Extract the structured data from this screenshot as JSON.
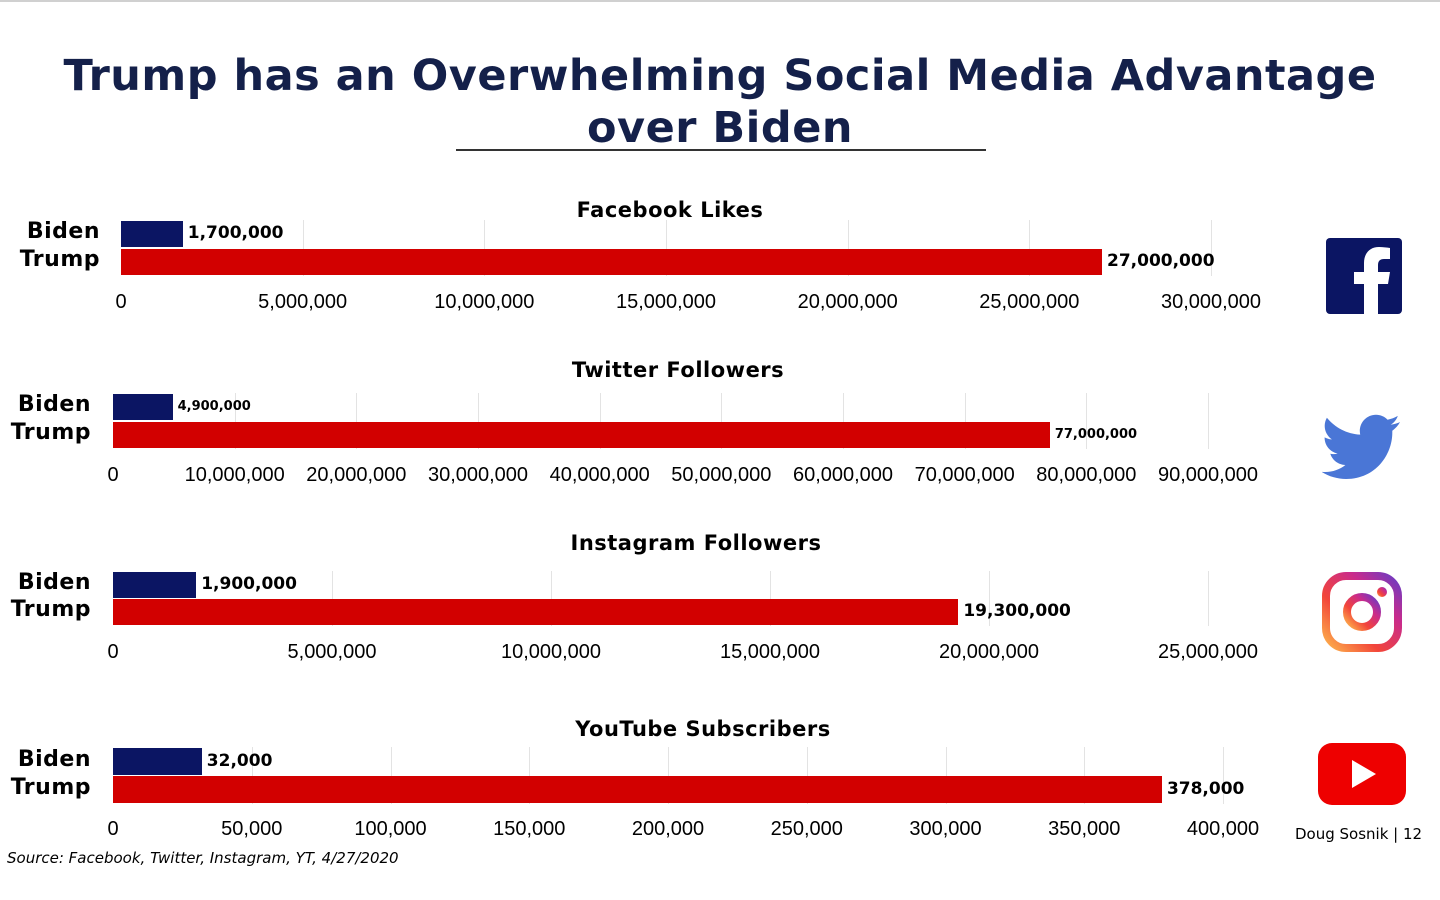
{
  "title_line1": "Trump has an Overwhelming Social Media Advantage",
  "title_line2": "over Biden",
  "source": "Source: Facebook, Twitter, Instagram, YT, 4/27/2020",
  "footer": "Doug Sosnik | 12",
  "colors": {
    "biden": "#0b1563",
    "trump": "#d20000",
    "title": "#14204a"
  },
  "chart_data": [
    {
      "type": "bar",
      "title": "Facebook Likes",
      "icon": "facebook-icon",
      "categories": [
        "Biden",
        "Trump"
      ],
      "values": [
        1700000,
        27000000
      ],
      "value_labels": [
        "1,700,000",
        "27,000,000"
      ],
      "xlim": [
        0,
        30000000
      ],
      "ticks": [
        "0",
        "5,000,000",
        "10,000,000",
        "15,000,000",
        "20,000,000",
        "25,000,000",
        "30,000,000"
      ]
    },
    {
      "type": "bar",
      "title": "Twitter Followers",
      "icon": "twitter-icon",
      "categories": [
        "Biden",
        "Trump"
      ],
      "values": [
        4900000,
        77000000
      ],
      "value_labels": [
        "4,900,000",
        "77,000,000"
      ],
      "xlim": [
        0,
        90000000
      ],
      "ticks": [
        "0",
        "10,000,000",
        "20,000,000",
        "30,000,000",
        "40,000,000",
        "50,000,000",
        "60,000,000",
        "70,000,000",
        "80,000,000",
        "90,000,000"
      ]
    },
    {
      "type": "bar",
      "title": "Instagram Followers",
      "icon": "instagram-icon",
      "categories": [
        "Biden",
        "Trump"
      ],
      "values": [
        1900000,
        19300000
      ],
      "value_labels": [
        "1,900,000",
        "19,300,000"
      ],
      "xlim": [
        0,
        25000000
      ],
      "ticks": [
        "0",
        "5,000,000",
        "10,000,000",
        "15,000,000",
        "20,000,000",
        "25,000,000"
      ]
    },
    {
      "type": "bar",
      "title": "YouTube Subscribers",
      "icon": "youtube-icon",
      "categories": [
        "Biden",
        "Trump"
      ],
      "values": [
        32000,
        378000
      ],
      "value_labels": [
        "32,000",
        "378,000"
      ],
      "xlim": [
        0,
        400000
      ],
      "ticks": [
        "0",
        "50,000",
        "100,000",
        "150,000",
        "200,000",
        "250,000",
        "300,000",
        "350,000",
        "400,000"
      ]
    }
  ]
}
